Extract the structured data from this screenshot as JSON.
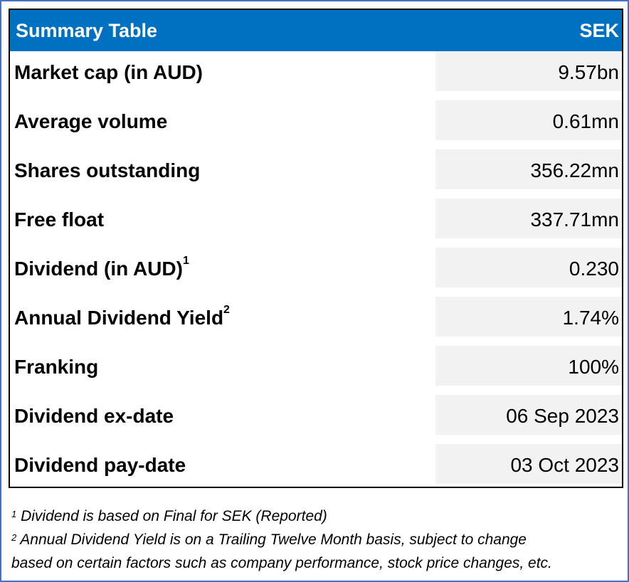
{
  "table": {
    "title": "Summary Table",
    "ticker": "SEK",
    "rows": [
      {
        "label": "Market cap (in AUD)",
        "sup": "",
        "value": "9.57bn"
      },
      {
        "label": "Average volume",
        "sup": "",
        "value": "0.61mn"
      },
      {
        "label": "Shares outstanding",
        "sup": "",
        "value": "356.22mn"
      },
      {
        "label": "Free float",
        "sup": "",
        "value": "337.71mn"
      },
      {
        "label": "Dividend (in AUD)",
        "sup": "1",
        "value": "0.230"
      },
      {
        "label": "Annual Dividend Yield",
        "sup": "2",
        "value": "1.74%"
      },
      {
        "label": "Franking",
        "sup": "",
        "value": "100%"
      },
      {
        "label": "Dividend ex-date",
        "sup": "",
        "value": "06 Sep 2023"
      },
      {
        "label": "Dividend pay-date",
        "sup": "",
        "value": "03 Oct 2023"
      }
    ]
  },
  "footnotes": {
    "fn1_mark": "1",
    "fn1_text": "Dividend is based on Final for SEK (Reported)",
    "fn2_mark": "2",
    "fn2_line1": "Annual Dividend Yield is on a Trailing Twelve Month basis, subject to change",
    "fn2_line2": "based on certain factors such as company performance, stock price changes, etc."
  },
  "colors": {
    "header_bg": "#0070c0",
    "value_cell_bg": "#f2f2f2",
    "frame_border": "#4472c4"
  }
}
